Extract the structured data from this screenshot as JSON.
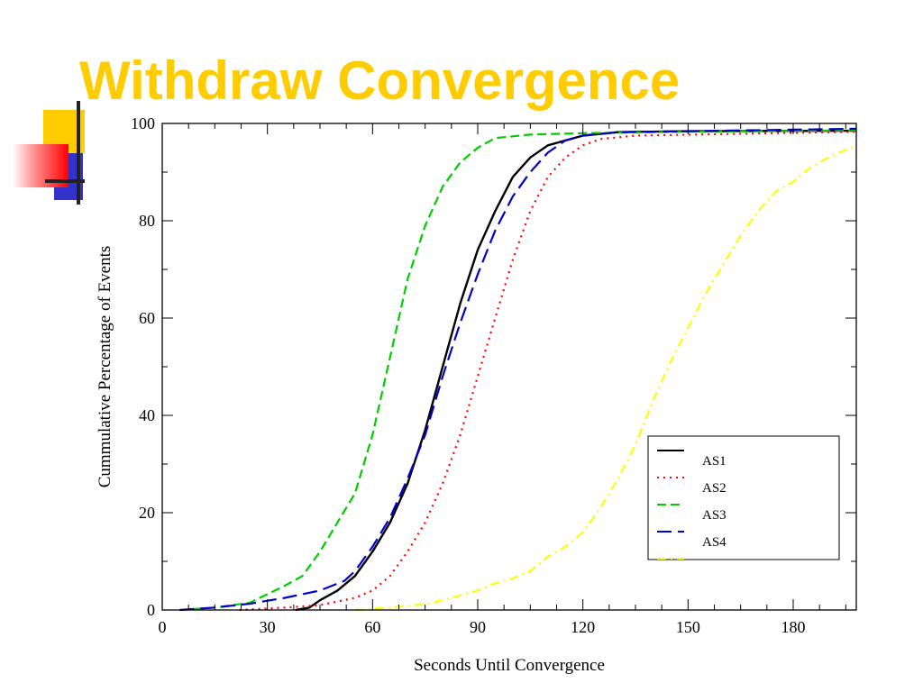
{
  "slide": {
    "title": "Withdraw Convergence",
    "accent_colors": {
      "title": "#ffcc00",
      "yellow": "#ffcc00",
      "blue": "#3333cc",
      "red": "#ff0000",
      "line": "#222222"
    }
  },
  "chart_data": {
    "type": "line",
    "title": "",
    "xlabel": "Seconds Until Convergence",
    "ylabel": "Cummulative Percentage of Events",
    "xlim": [
      0,
      198
    ],
    "ylim": [
      0,
      100
    ],
    "xticks": [
      0,
      30,
      60,
      90,
      120,
      150,
      180
    ],
    "yticks": [
      0,
      20,
      40,
      60,
      80,
      100
    ],
    "grid": false,
    "legend_position": "bottom-right",
    "series": [
      {
        "name": "AS1",
        "color": "#000000",
        "dash": "solid",
        "points": [
          [
            38,
            0
          ],
          [
            42,
            0.5
          ],
          [
            45,
            2
          ],
          [
            50,
            4
          ],
          [
            55,
            7
          ],
          [
            60,
            12
          ],
          [
            65,
            18
          ],
          [
            70,
            26
          ],
          [
            75,
            37
          ],
          [
            80,
            50
          ],
          [
            85,
            63
          ],
          [
            90,
            74
          ],
          [
            95,
            82
          ],
          [
            100,
            89
          ],
          [
            105,
            93
          ],
          [
            110,
            95.5
          ],
          [
            115,
            96.5
          ],
          [
            120,
            97.5
          ],
          [
            130,
            98.2
          ],
          [
            150,
            98.4
          ],
          [
            198,
            98.5
          ]
        ]
      },
      {
        "name": "AS2",
        "color": "#ff0000",
        "dash": "dotted",
        "points": [
          [
            22,
            0
          ],
          [
            35,
            0.5
          ],
          [
            45,
            1
          ],
          [
            55,
            2.5
          ],
          [
            60,
            4
          ],
          [
            65,
            7
          ],
          [
            70,
            12
          ],
          [
            75,
            18
          ],
          [
            80,
            26
          ],
          [
            85,
            36
          ],
          [
            90,
            48
          ],
          [
            95,
            60
          ],
          [
            100,
            72
          ],
          [
            105,
            82
          ],
          [
            110,
            89
          ],
          [
            115,
            93
          ],
          [
            120,
            95.5
          ],
          [
            125,
            96.8
          ],
          [
            135,
            97.5
          ],
          [
            198,
            98.3
          ]
        ]
      },
      {
        "name": "AS3",
        "color": "#00cc00",
        "dash": "dashed",
        "points": [
          [
            5,
            0
          ],
          [
            15,
            0.5
          ],
          [
            25,
            1.5
          ],
          [
            35,
            5
          ],
          [
            40,
            7
          ],
          [
            45,
            12
          ],
          [
            50,
            18
          ],
          [
            55,
            24
          ],
          [
            60,
            36
          ],
          [
            65,
            52
          ],
          [
            70,
            68
          ],
          [
            75,
            79
          ],
          [
            80,
            87
          ],
          [
            85,
            92
          ],
          [
            90,
            95
          ],
          [
            95,
            97
          ],
          [
            105,
            97.7
          ],
          [
            120,
            98
          ],
          [
            150,
            98.3
          ],
          [
            198,
            98.6
          ]
        ]
      },
      {
        "name": "AS4",
        "color": "#0000cc",
        "dash": "longdash",
        "points": [
          [
            5,
            0
          ],
          [
            15,
            0.5
          ],
          [
            25,
            1.3
          ],
          [
            35,
            2.5
          ],
          [
            45,
            4
          ],
          [
            52,
            6
          ],
          [
            55,
            8
          ],
          [
            60,
            13
          ],
          [
            65,
            19
          ],
          [
            70,
            27
          ],
          [
            75,
            36
          ],
          [
            80,
            48
          ],
          [
            85,
            59
          ],
          [
            90,
            69
          ],
          [
            95,
            78
          ],
          [
            100,
            85
          ],
          [
            105,
            90
          ],
          [
            110,
            94
          ],
          [
            115,
            96.5
          ],
          [
            120,
            97.5
          ],
          [
            130,
            98.2
          ],
          [
            198,
            98.9
          ]
        ]
      },
      {
        "name": "",
        "color": "#ffff00",
        "dash": "dashdot",
        "points": [
          [
            55,
            0
          ],
          [
            65,
            0.5
          ],
          [
            75,
            1.2
          ],
          [
            80,
            2
          ],
          [
            85,
            3
          ],
          [
            90,
            4
          ],
          [
            95,
            5.5
          ],
          [
            100,
            6.5
          ],
          [
            105,
            8
          ],
          [
            110,
            11
          ],
          [
            115,
            13
          ],
          [
            120,
            16
          ],
          [
            125,
            21
          ],
          [
            130,
            27
          ],
          [
            135,
            34
          ],
          [
            140,
            43
          ],
          [
            145,
            51
          ],
          [
            150,
            58
          ],
          [
            155,
            65
          ],
          [
            160,
            71
          ],
          [
            165,
            77
          ],
          [
            170,
            82
          ],
          [
            175,
            86
          ],
          [
            180,
            88
          ],
          [
            185,
            91
          ],
          [
            190,
            93
          ],
          [
            198,
            95.5
          ]
        ]
      }
    ]
  }
}
